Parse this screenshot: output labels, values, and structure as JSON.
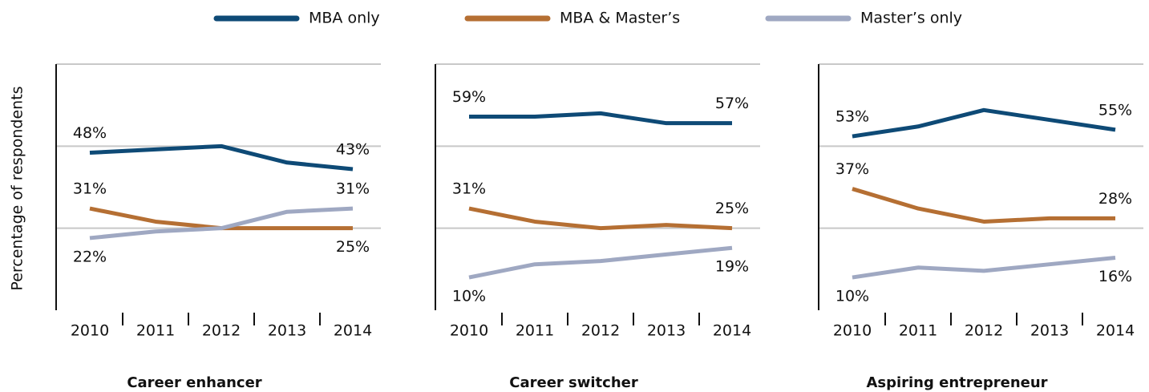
{
  "y_label": "Percentage of respondents",
  "legend": [
    {
      "name": "MBA only",
      "color": "#0e4a76"
    },
    {
      "name": "MBA & Master’s",
      "color": "#b56f33"
    },
    {
      "name": "Master’s only",
      "color": "#9fa8c2"
    }
  ],
  "chart_data": [
    {
      "type": "line",
      "title": "Career enhancer",
      "categories": [
        "2010",
        "2011",
        "2012",
        "2013",
        "2014"
      ],
      "ylim": [
        0,
        75
      ],
      "yticks": [
        25,
        50,
        75
      ],
      "series": [
        {
          "values": [
            48,
            49,
            50,
            45,
            43
          ],
          "value_labels": [
            "48%",
            null,
            null,
            null,
            "43%"
          ]
        },
        {
          "values": [
            31,
            27,
            25,
            25,
            25
          ],
          "value_labels": [
            "31%",
            null,
            null,
            null,
            "25%"
          ]
        },
        {
          "values": [
            22,
            24,
            25,
            30,
            31
          ],
          "value_labels": [
            "22%",
            null,
            null,
            null,
            "31%"
          ]
        }
      ]
    },
    {
      "type": "line",
      "title": "Career switcher",
      "categories": [
        "2010",
        "2011",
        "2012",
        "2013",
        "2014"
      ],
      "ylim": [
        0,
        75
      ],
      "yticks": [
        25,
        50,
        75
      ],
      "series": [
        {
          "values": [
            59,
            59,
            60,
            57,
            57
          ],
          "value_labels": [
            "59%",
            null,
            null,
            null,
            "57%"
          ]
        },
        {
          "values": [
            31,
            27,
            25,
            26,
            25
          ],
          "value_labels": [
            "31%",
            null,
            null,
            null,
            "25%"
          ]
        },
        {
          "values": [
            10,
            14,
            15,
            17,
            19
          ],
          "value_labels": [
            "10%",
            null,
            null,
            null,
            "19%"
          ]
        }
      ]
    },
    {
      "type": "line",
      "title": "Aspiring entrepreneur",
      "categories": [
        "2010",
        "2011",
        "2012",
        "2013",
        "2014"
      ],
      "ylim": [
        0,
        75
      ],
      "yticks": [
        25,
        50,
        75
      ],
      "series": [
        {
          "values": [
            53,
            56,
            61,
            58,
            55
          ],
          "value_labels": [
            "53%",
            null,
            null,
            null,
            "55%"
          ]
        },
        {
          "values": [
            37,
            31,
            27,
            28,
            28
          ],
          "value_labels": [
            "37%",
            null,
            null,
            null,
            "28%"
          ]
        },
        {
          "values": [
            10,
            13,
            12,
            14,
            16
          ],
          "value_labels": [
            "10%",
            null,
            null,
            null,
            "16%"
          ]
        }
      ]
    }
  ]
}
